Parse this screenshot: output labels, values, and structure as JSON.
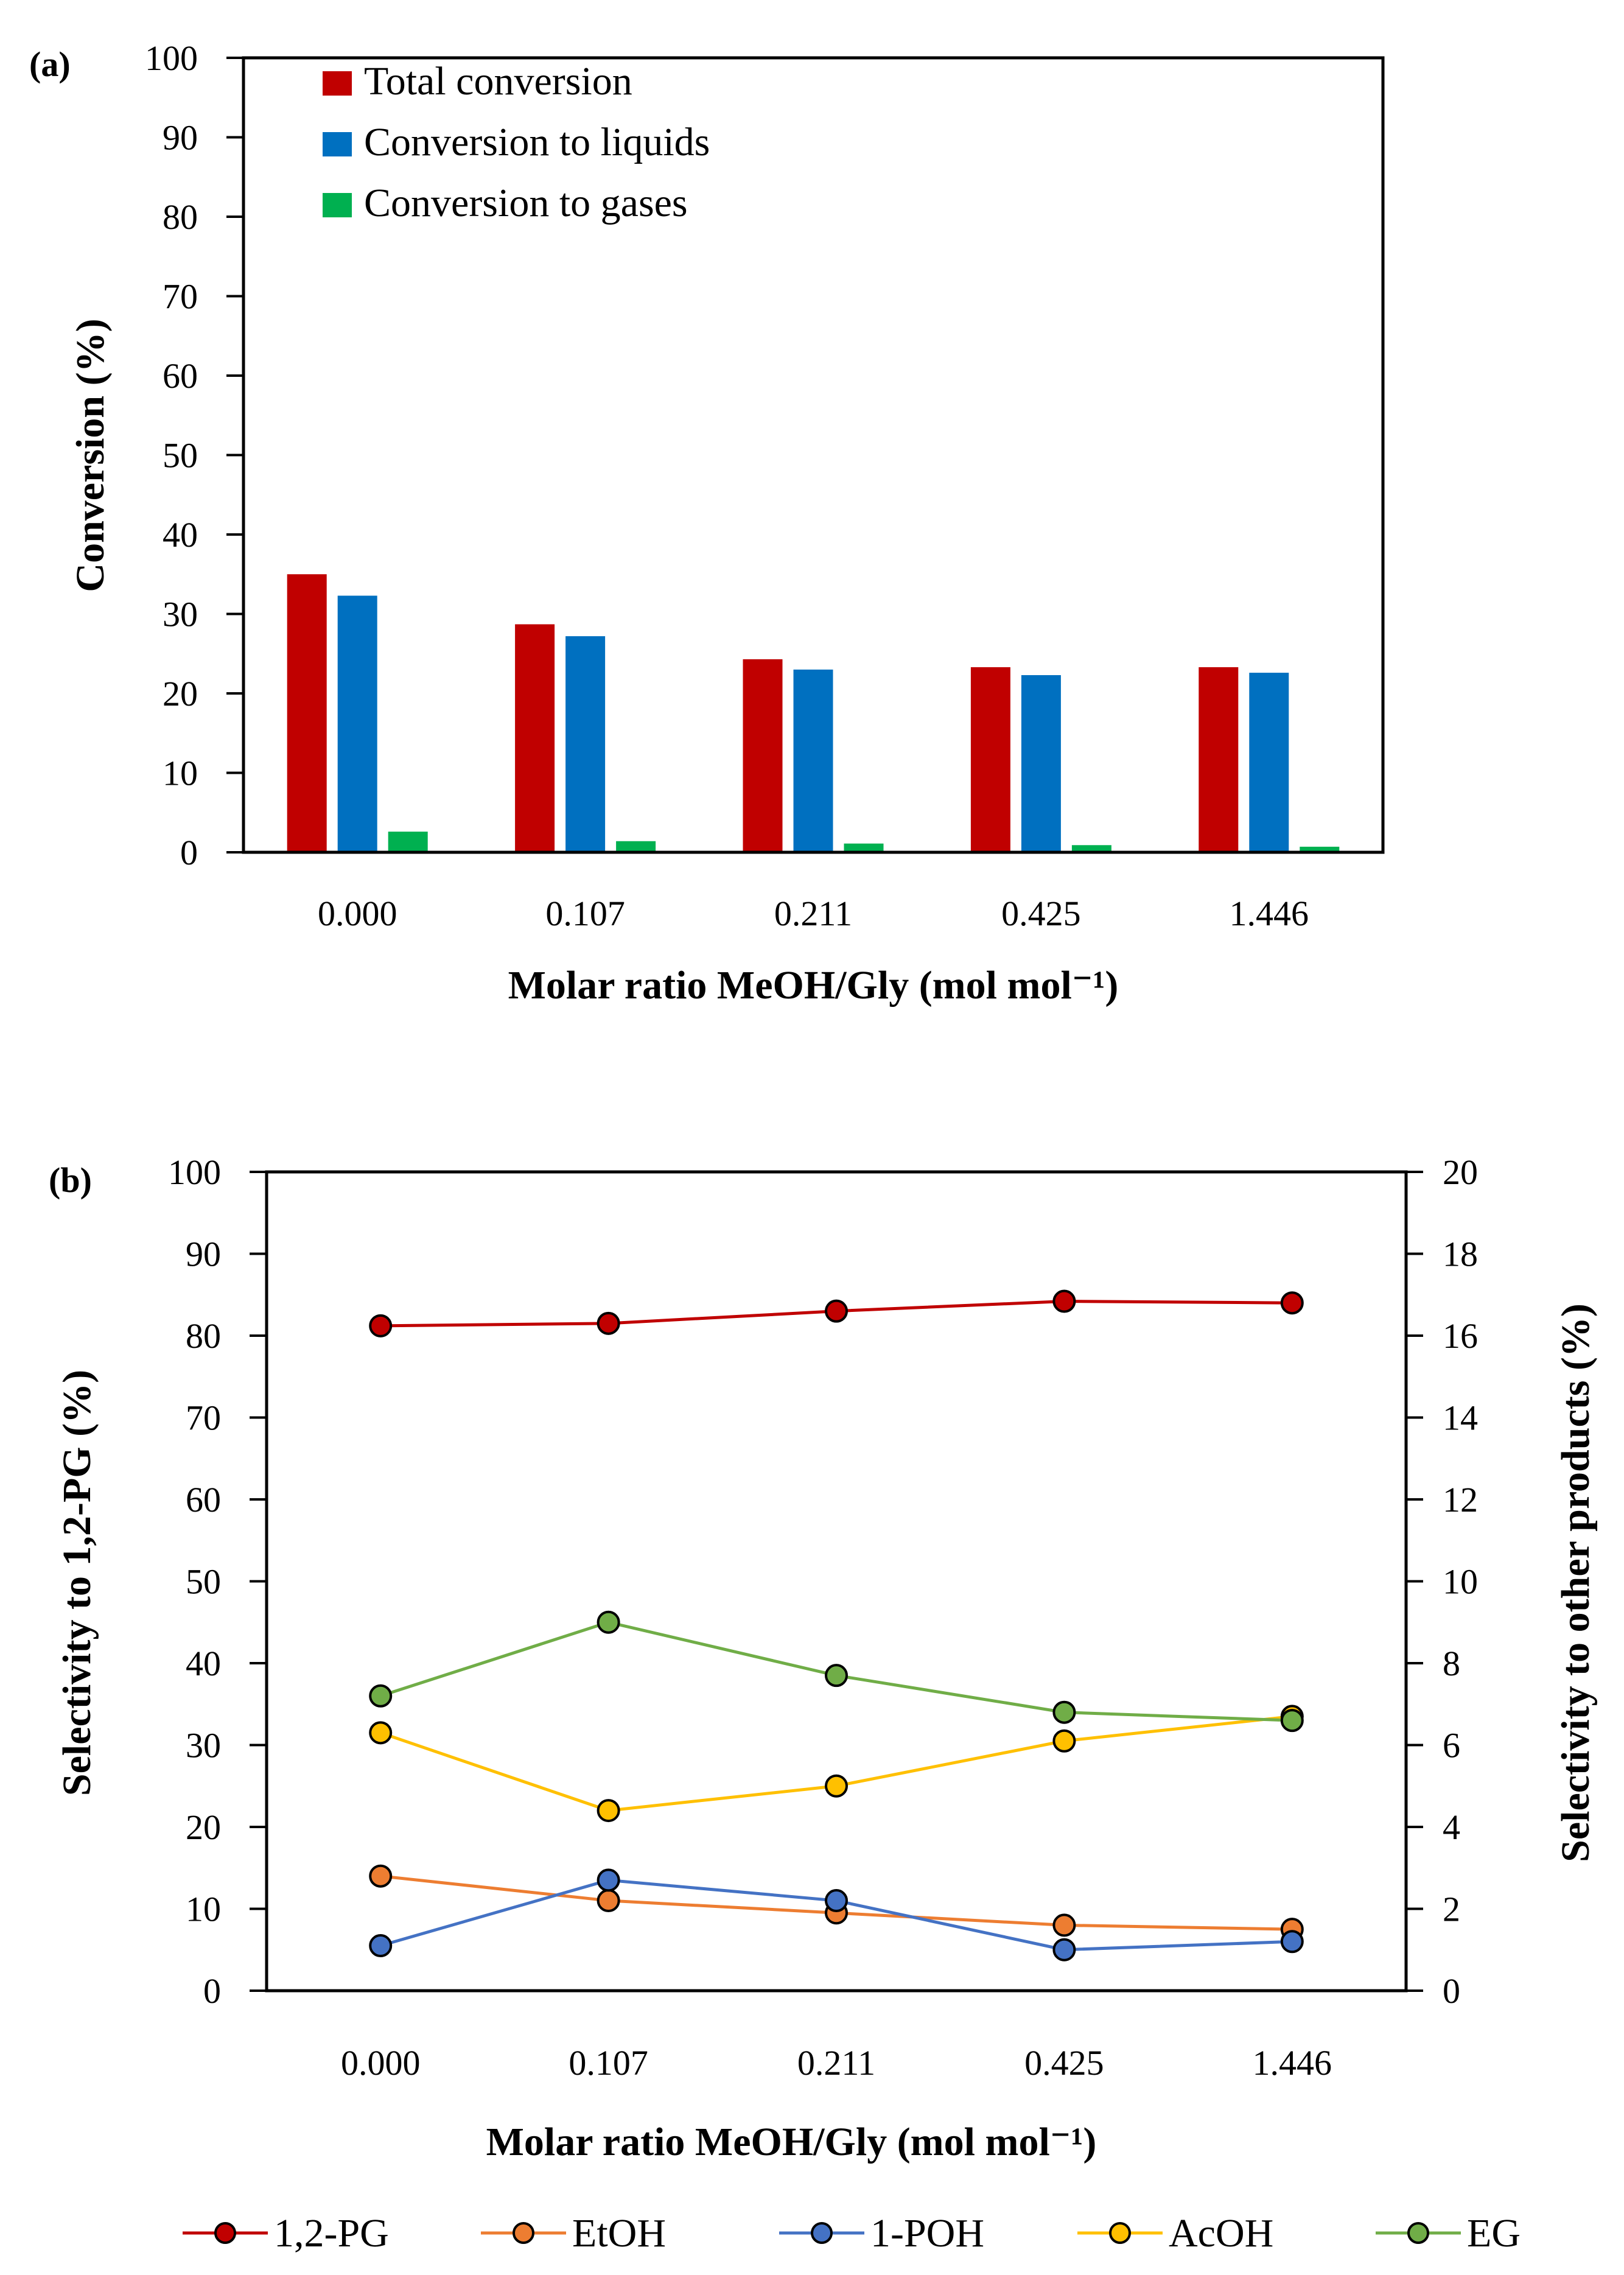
{
  "chart_data": [
    {
      "panel_label": "(a)",
      "type": "bar",
      "categories": [
        "0.000",
        "0.107",
        "0.211",
        "0.425",
        "1.446"
      ],
      "series": [
        {
          "name": "Total conversion",
          "color": "#c00000",
          "values": [
            35.0,
            28.7,
            24.3,
            23.3,
            23.3
          ]
        },
        {
          "name": "Conversion to liquids",
          "color": "#0070c0",
          "values": [
            32.3,
            27.2,
            23.0,
            22.3,
            22.6
          ]
        },
        {
          "name": "Conversion to gases",
          "color": "#00b050",
          "values": [
            2.6,
            1.4,
            1.1,
            0.9,
            0.7
          ]
        }
      ],
      "xlabel": "Molar ratio MeOH/Gly (mol mol⁻¹)",
      "ylabel": "Conversion (%)",
      "ylim": [
        0,
        100
      ],
      "yticks": [
        "0",
        "10",
        "20",
        "30",
        "40",
        "50",
        "60",
        "70",
        "80",
        "90",
        "100"
      ],
      "legend_position": "top-left"
    },
    {
      "panel_label": "(b)",
      "type": "line",
      "categories": [
        "0.000",
        "0.107",
        "0.211",
        "0.425",
        "1.446"
      ],
      "series": [
        {
          "name": "1,2-PG",
          "color": "#c00000",
          "axis": "left",
          "values": [
            81.2,
            81.5,
            83.0,
            84.2,
            84.0
          ]
        },
        {
          "name": "EtOH",
          "color": "#ed7d31",
          "axis": "right",
          "values": [
            2.8,
            2.2,
            1.9,
            1.6,
            1.5
          ]
        },
        {
          "name": "1-POH",
          "color": "#4472c4",
          "axis": "right",
          "values": [
            1.1,
            2.7,
            2.2,
            1.0,
            1.2
          ]
        },
        {
          "name": "AcOH",
          "color": "#ffc000",
          "axis": "right",
          "values": [
            6.3,
            4.4,
            5.0,
            6.1,
            6.7
          ]
        },
        {
          "name": "EG",
          "color": "#70ad47",
          "axis": "right",
          "values": [
            7.2,
            9.0,
            7.7,
            6.8,
            6.6
          ]
        }
      ],
      "xlabel": "Molar ratio MeOH/Gly (mol mol⁻¹)",
      "ylabel_left": "Selectivity  to 1,2-PG (%)",
      "ylabel_right": "Selectivity  to other products (%)",
      "ylim_left": [
        0,
        100
      ],
      "ylim_right": [
        0,
        20
      ],
      "yticks_left": [
        "0",
        "10",
        "20",
        "30",
        "40",
        "50",
        "60",
        "70",
        "80",
        "90",
        "100"
      ],
      "yticks_right": [
        "0",
        "2",
        "4",
        "6",
        "8",
        "10",
        "12",
        "14",
        "16",
        "18",
        "20"
      ],
      "legend_position": "bottom"
    }
  ]
}
